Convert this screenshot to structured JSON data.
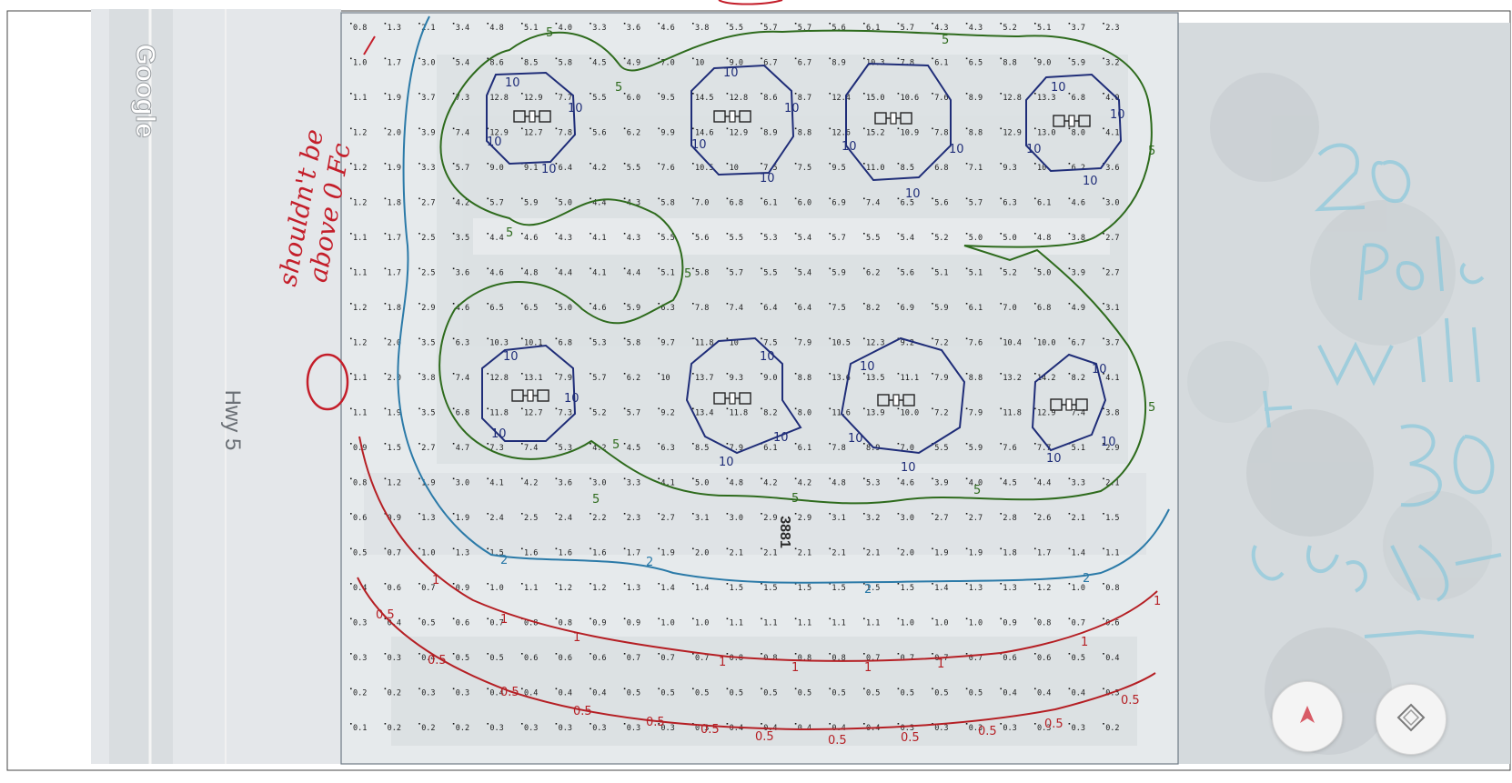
{
  "map": {
    "watermark": "Google",
    "road_label": "Hwy 5",
    "street_number": "3881",
    "grid_values": {
      "rows": [
        [
          "0.8",
          "1.3",
          "2.1",
          "3.4",
          "4.8",
          "5.1",
          "4.0",
          "3.3",
          "3.6",
          "4.6",
          "3.8",
          "5.5",
          "5.7",
          "5.7",
          "5.6",
          "6.1",
          "5.7",
          "4.3",
          "4.3",
          "5.2",
          "5.1",
          "3.7",
          "2.3"
        ],
        [
          "1.0",
          "1.7",
          "3.0",
          "5.4",
          "8.6",
          "8.5",
          "5.8",
          "4.5",
          "4.9",
          "7.0",
          "10",
          "9.0",
          "6.7",
          "6.7",
          "8.9",
          "10.3",
          "7.8",
          "6.1",
          "6.5",
          "8.8",
          "9.0",
          "5.9",
          "3.2"
        ],
        [
          "1.1",
          "1.9",
          "3.7",
          "7.3",
          "12.8",
          "12.9",
          "7.7",
          "5.5",
          "6.0",
          "9.5",
          "14.5",
          "12.8",
          "8.6",
          "8.7",
          "12.4",
          "15.0",
          "10.6",
          "7.6",
          "8.9",
          "12.8",
          "13.3",
          "6.8",
          "4.0"
        ],
        [
          "1.2",
          "2.0",
          "3.9",
          "7.4",
          "12.9",
          "12.7",
          "7.8",
          "5.6",
          "6.2",
          "9.9",
          "14.6",
          "12.9",
          "8.9",
          "8.8",
          "12.6",
          "15.2",
          "10.9",
          "7.8",
          "8.8",
          "12.9",
          "13.0",
          "8.0",
          "4.1"
        ],
        [
          "1.2",
          "1.9",
          "3.3",
          "5.7",
          "9.0",
          "9.1",
          "6.4",
          "4.2",
          "5.5",
          "7.6",
          "10.5",
          "10",
          "7.5",
          "7.5",
          "9.5",
          "11.0",
          "8.5",
          "6.8",
          "7.1",
          "9.3",
          "10",
          "6.2",
          "3.6"
        ],
        [
          "1.2",
          "1.8",
          "2.7",
          "4.2",
          "5.7",
          "5.9",
          "5.0",
          "4.4",
          "4.3",
          "5.8",
          "7.0",
          "6.8",
          "6.1",
          "6.0",
          "6.9",
          "7.4",
          "6.5",
          "5.6",
          "5.7",
          "6.3",
          "6.1",
          "4.6",
          "3.0"
        ],
        [
          "1.1",
          "1.7",
          "2.5",
          "3.5",
          "4.4",
          "4.6",
          "4.3",
          "4.1",
          "4.3",
          "5.5",
          "5.6",
          "5.5",
          "5.3",
          "5.4",
          "5.7",
          "5.5",
          "5.4",
          "5.2",
          "5.0",
          "5.0",
          "4.8",
          "3.8",
          "2.7"
        ],
        [
          "1.1",
          "1.7",
          "2.5",
          "3.6",
          "4.6",
          "4.8",
          "4.4",
          "4.1",
          "4.4",
          "5.1",
          "5.8",
          "5.7",
          "5.5",
          "5.4",
          "5.9",
          "6.2",
          "5.6",
          "5.1",
          "5.1",
          "5.2",
          "5.0",
          "3.9",
          "2.7"
        ],
        [
          "1.2",
          "1.8",
          "2.9",
          "4.6",
          "6.5",
          "6.5",
          "5.0",
          "4.6",
          "5.9",
          "6.3",
          "7.8",
          "7.4",
          "6.4",
          "6.4",
          "7.5",
          "8.2",
          "6.9",
          "5.9",
          "6.1",
          "7.0",
          "6.8",
          "4.9",
          "3.1"
        ],
        [
          "1.2",
          "2.0",
          "3.5",
          "6.3",
          "10.3",
          "10.1",
          "6.8",
          "5.3",
          "5.8",
          "9.7",
          "11.8",
          "10",
          "7.5",
          "7.9",
          "10.5",
          "12.3",
          "9.2",
          "7.2",
          "7.6",
          "10.4",
          "10.0",
          "6.7",
          "3.7"
        ],
        [
          "1.1",
          "2.0",
          "3.8",
          "7.4",
          "12.8",
          "13.1",
          "7.9",
          "5.7",
          "6.2",
          "10",
          "13.7",
          "9.3",
          "9.0",
          "8.8",
          "13.6",
          "13.5",
          "11.1",
          "7.9",
          "8.8",
          "13.2",
          "14.2",
          "8.2",
          "4.1"
        ],
        [
          "1.1",
          "1.9",
          "3.5",
          "6.8",
          "11.8",
          "12.7",
          "7.3",
          "5.2",
          "5.7",
          "9.2",
          "13.4",
          "11.8",
          "8.2",
          "8.0",
          "11.6",
          "13.9",
          "10.0",
          "7.2",
          "7.9",
          "11.8",
          "12.9",
          "7.4",
          "3.8"
        ],
        [
          "0.9",
          "1.5",
          "2.7",
          "4.7",
          "7.3",
          "7.4",
          "5.3",
          "4.2",
          "4.5",
          "6.3",
          "8.5",
          "7.9",
          "6.1",
          "6.1",
          "7.8",
          "8.9",
          "7.0",
          "5.5",
          "5.9",
          "7.6",
          "7.7",
          "5.1",
          "2.9"
        ],
        [
          "0.8",
          "1.2",
          "1.9",
          "3.0",
          "4.1",
          "4.2",
          "3.6",
          "3.0",
          "3.3",
          "4.1",
          "5.0",
          "4.8",
          "4.2",
          "4.2",
          "4.8",
          "5.3",
          "4.6",
          "3.9",
          "4.0",
          "4.5",
          "4.4",
          "3.3",
          "2.1"
        ],
        [
          "0.6",
          "0.9",
          "1.3",
          "1.9",
          "2.4",
          "2.5",
          "2.4",
          "2.2",
          "2.3",
          "2.7",
          "3.1",
          "3.0",
          "2.9",
          "2.9",
          "3.1",
          "3.2",
          "3.0",
          "2.7",
          "2.7",
          "2.8",
          "2.6",
          "2.1",
          "1.5"
        ],
        [
          "0.5",
          "0.7",
          "1.0",
          "1.3",
          "1.5",
          "1.6",
          "1.6",
          "1.6",
          "1.7",
          "1.9",
          "2.0",
          "2.1",
          "2.1",
          "2.1",
          "2.1",
          "2.1",
          "2.0",
          "1.9",
          "1.9",
          "1.8",
          "1.7",
          "1.4",
          "1.1"
        ],
        [
          "0.4",
          "0.6",
          "0.7",
          "0.9",
          "1.0",
          "1.1",
          "1.2",
          "1.2",
          "1.3",
          "1.4",
          "1.4",
          "1.5",
          "1.5",
          "1.5",
          "1.5",
          "1.5",
          "1.5",
          "1.4",
          "1.3",
          "1.3",
          "1.2",
          "1.0",
          "0.8"
        ],
        [
          "0.3",
          "0.4",
          "0.5",
          "0.6",
          "0.7",
          "0.8",
          "0.8",
          "0.9",
          "0.9",
          "1.0",
          "1.0",
          "1.1",
          "1.1",
          "1.1",
          "1.1",
          "1.1",
          "1.0",
          "1.0",
          "1.0",
          "0.9",
          "0.8",
          "0.7",
          "0.6"
        ],
        [
          "0.3",
          "0.3",
          "0.4",
          "0.5",
          "0.5",
          "0.6",
          "0.6",
          "0.6",
          "0.7",
          "0.7",
          "0.7",
          "0.8",
          "0.8",
          "0.8",
          "0.8",
          "0.7",
          "0.7",
          "0.7",
          "0.7",
          "0.6",
          "0.6",
          "0.5",
          "0.4"
        ],
        [
          "0.2",
          "0.2",
          "0.3",
          "0.3",
          "0.4",
          "0.4",
          "0.4",
          "0.4",
          "0.5",
          "0.5",
          "0.5",
          "0.5",
          "0.5",
          "0.5",
          "0.5",
          "0.5",
          "0.5",
          "0.5",
          "0.5",
          "0.4",
          "0.4",
          "0.4",
          "0.3"
        ],
        [
          "0.1",
          "0.2",
          "0.2",
          "0.2",
          "0.3",
          "0.3",
          "0.3",
          "0.3",
          "0.3",
          "0.3",
          "0.3",
          "0.4",
          "0.4",
          "0.4",
          "0.4",
          "0.4",
          "0.3",
          "0.3",
          "0.3",
          "0.3",
          "0.3",
          "0.3",
          "0.2"
        ]
      ]
    },
    "contour_labels": {
      "c10": "10",
      "c5": "5",
      "c2": "2",
      "c1": "1",
      "c05": "0.5"
    },
    "contour_colors": {
      "c10": "#1f2d78",
      "c5": "#2e6b1d",
      "c2": "#2b7aa8",
      "c1": "#b51f24",
      "c05": "#b51f24"
    }
  },
  "annotations": {
    "handwritten_note_line1": "shouldn't be",
    "handwritten_note_line2": "above 0 Fc",
    "ink_red": "#c41e2a",
    "ink_light_blue": "#8ec9dc"
  },
  "controls": {
    "navigate_icon": "navigation-arrow-icon",
    "layers_icon": "layers-diamond-icon"
  }
}
